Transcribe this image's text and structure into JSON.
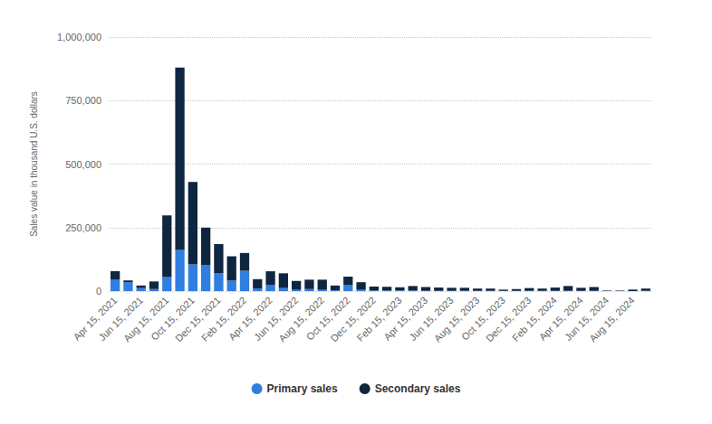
{
  "chart_data": {
    "type": "bar",
    "y_label": "Sales value in thousand U.S. dollars",
    "categories": [
      "Apr 15, 2021",
      null,
      "Jun 15, 2021",
      null,
      "Aug 15, 2021",
      null,
      "Oct 15, 2021",
      null,
      "Dec 15, 2021",
      null,
      "Feb 15, 2022",
      null,
      "Apr 15, 2022",
      null,
      "Jun 15, 2022",
      null,
      "Aug 15, 2022",
      null,
      "Oct 15, 2022",
      null,
      "Dec 15, 2022",
      null,
      "Feb 15, 2023",
      null,
      "Apr 15, 2023",
      null,
      "Jun 15, 2023",
      null,
      "Aug 15, 2023",
      null,
      "Oct 15, 2023",
      null,
      "Dec 15, 2023",
      null,
      "Feb 15, 2024",
      null,
      "Apr 15, 2024",
      null,
      "Jun 15, 2024",
      null,
      "Aug 15, 2024",
      null
    ],
    "series": [
      {
        "name": "Primary sales",
        "color": "#2f7ee0",
        "values": [
          46000,
          35000,
          12000,
          8000,
          55000,
          162000,
          105000,
          103000,
          70000,
          42000,
          80000,
          10000,
          25000,
          12000,
          5000,
          8000,
          5000,
          3000,
          25000,
          5000,
          2000,
          2000,
          2000,
          2000,
          1000,
          1000,
          1000,
          1000,
          1000,
          1000,
          1000,
          1000,
          1000,
          1000,
          1000,
          1000,
          1000,
          1000,
          0,
          0,
          0,
          1000
        ]
      },
      {
        "name": "Secondary sales",
        "color": "#0f2640",
        "values": [
          32000,
          7000,
          10000,
          30000,
          243000,
          718000,
          325000,
          147000,
          115000,
          95000,
          70000,
          37000,
          53000,
          58000,
          35000,
          37000,
          40000,
          19000,
          32000,
          30000,
          16000,
          15000,
          13000,
          18000,
          15000,
          13000,
          12000,
          12000,
          9000,
          9000,
          5000,
          7000,
          11000,
          9000,
          13000,
          19000,
          12000,
          15000,
          2000,
          2000,
          6000,
          9000
        ]
      }
    ],
    "ylim": [
      0,
      1000000
    ],
    "yticks": [
      0,
      {
        "value": 250000,
        "label": "250,000"
      },
      {
        "value": 500000,
        "label": "500,000"
      },
      {
        "value": 750000,
        "label": "750,000"
      },
      {
        "value": 1000000,
        "label": "1,000,000"
      }
    ],
    "stacked": true,
    "grid": true,
    "legend": "bottom"
  }
}
